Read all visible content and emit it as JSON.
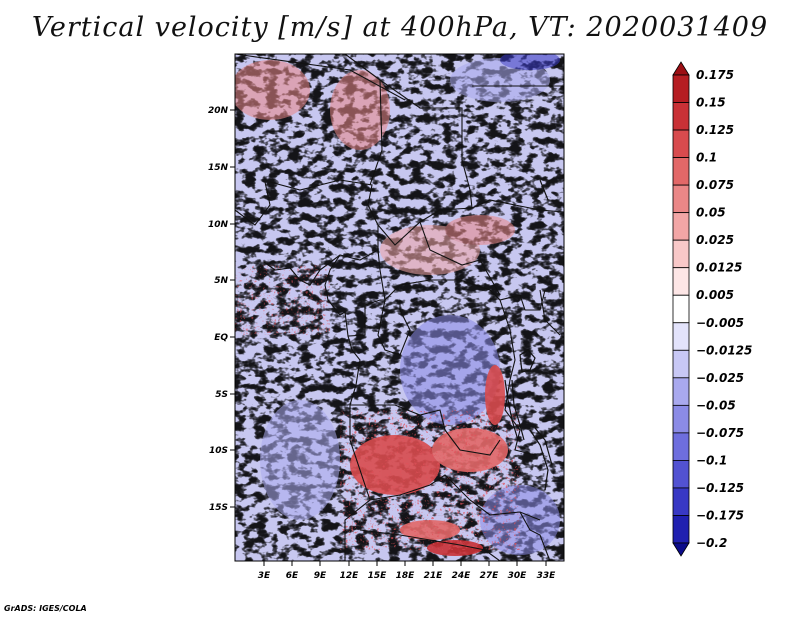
{
  "title": "Vertical velocity [m/s] at 400hPa, VT: 2020031409",
  "credit": "GrADS: IGES/COLA",
  "map": {
    "region": "Central and southern Africa",
    "variable": "Vertical velocity",
    "units": "m/s",
    "level": "400hPa",
    "valid_time": "2020031409",
    "lon_ticks": [
      "3E",
      "6E",
      "9E",
      "12E",
      "15E",
      "18E",
      "21E",
      "24E",
      "27E",
      "30E",
      "33E"
    ],
    "lat_ticks": [
      "20N",
      "15N",
      "10N",
      "5N",
      "EQ",
      "5S",
      "10S",
      "15S"
    ]
  },
  "colorbar": {
    "levels": [
      "0.175",
      "0.15",
      "0.125",
      "0.1",
      "0.075",
      "0.05",
      "0.025",
      "0.0125",
      "0.005",
      "−0.005",
      "−0.0125",
      "−0.025",
      "−0.05",
      "−0.075",
      "−0.1",
      "−0.125",
      "−0.175",
      "−0.2"
    ],
    "colors": [
      "#9c0f14",
      "#b51d22",
      "#c93136",
      "#d84b4e",
      "#e26868",
      "#ea8787",
      "#f2a6a6",
      "#f8c8c8",
      "#fde6e6",
      "#ffffff",
      "#e3e3fb",
      "#c8c8f5",
      "#a9a9ee",
      "#8b8be6",
      "#6e6ede",
      "#5252d2",
      "#3838c4",
      "#2020b0",
      "#0c0c8a"
    ]
  }
}
